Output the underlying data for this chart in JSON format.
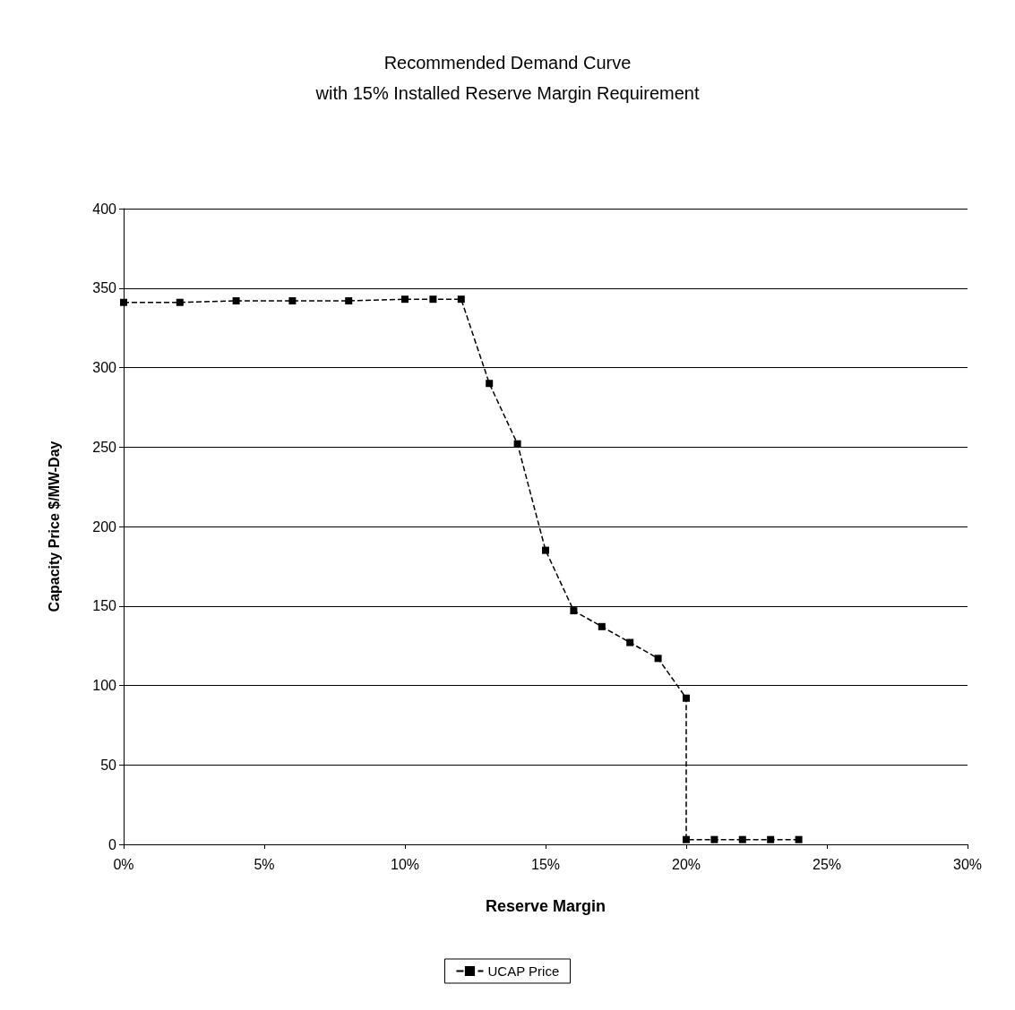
{
  "chart_data": {
    "type": "line",
    "title": "Recommended Demand Curve\nwith 15% Installed Reserve Margin Requirement",
    "xlabel": "Reserve Margin",
    "ylabel": "Capacity Price $/MW-Day",
    "series": [
      {
        "name": "UCAP Price",
        "color": "#000000",
        "x": [
          0,
          2,
          4,
          6,
          8,
          10,
          11,
          12,
          13,
          14,
          15,
          16,
          17,
          18,
          19,
          20,
          20,
          21,
          22,
          23,
          24
        ],
        "values": [
          341,
          341,
          342,
          342,
          342,
          343,
          343,
          343,
          290,
          252,
          185,
          147,
          137,
          127,
          117,
          92,
          3,
          3,
          3,
          3,
          3
        ]
      }
    ],
    "xlim": [
      0,
      30
    ],
    "xticks": [
      {
        "value": 0,
        "label": "0%"
      },
      {
        "value": 5,
        "label": "5%"
      },
      {
        "value": 10,
        "label": "10%"
      },
      {
        "value": 15,
        "label": "15%"
      },
      {
        "value": 20,
        "label": "20%"
      },
      {
        "value": 25,
        "label": "25%"
      },
      {
        "value": 30,
        "label": "30%"
      }
    ],
    "ylim": [
      0,
      400
    ],
    "yticks": [
      0,
      50,
      100,
      150,
      200,
      250,
      300,
      350,
      400
    ],
    "grid": "y",
    "legend": "bottom",
    "marker": "square",
    "line_style": "dashed"
  }
}
